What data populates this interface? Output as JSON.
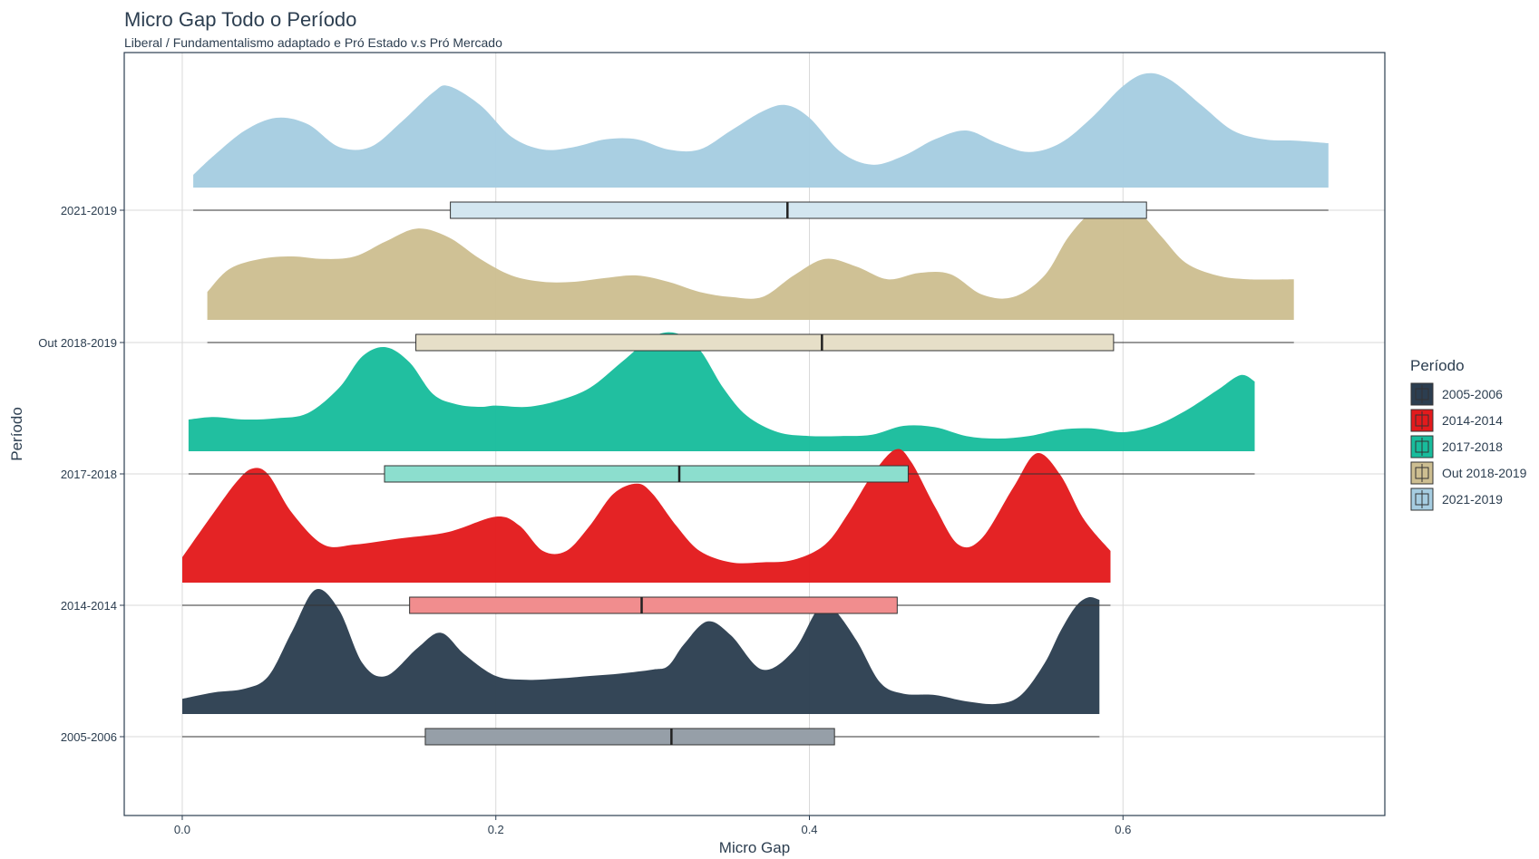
{
  "chart_data": {
    "type": "ridgeline",
    "title": "Micro Gap Todo o Período",
    "subtitle": "Liberal / Fundamentalismo adaptado e Pró Estado v.s Pró Mercado",
    "xlabel": "Micro Gap",
    "ylabel": "Período",
    "xlim": [
      -0.037,
      0.767
    ],
    "x_ticks": [
      0.0,
      0.2,
      0.4,
      0.6
    ],
    "x_tick_labels": [
      "0.0",
      "0.2",
      "0.4",
      "0.6"
    ],
    "grid": true,
    "legend": {
      "title": "Período",
      "placement": "right",
      "entries": [
        "2005-2006",
        "2014-2014",
        "2017-2018",
        "Out 2018-2019",
        "2021-2019"
      ]
    },
    "series": [
      {
        "name": "2005-2006",
        "color": "#2c3e50",
        "box": {
          "min": 0.0,
          "q1": 0.155,
          "median": 0.312,
          "q3": 0.416,
          "max": 0.585
        },
        "density": {
          "x": [
            0.0,
            0.02,
            0.04,
            0.055,
            0.07,
            0.085,
            0.1,
            0.115,
            0.13,
            0.15,
            0.165,
            0.18,
            0.2,
            0.22,
            0.24,
            0.26,
            0.28,
            0.3,
            0.31,
            0.32,
            0.335,
            0.35,
            0.37,
            0.39,
            0.405,
            0.415,
            0.43,
            0.445,
            0.46,
            0.48,
            0.5,
            0.52,
            0.535,
            0.55,
            0.56,
            0.57,
            0.578,
            0.585
          ],
          "y": [
            0.12,
            0.17,
            0.2,
            0.3,
            0.65,
            0.98,
            0.82,
            0.4,
            0.3,
            0.52,
            0.64,
            0.47,
            0.3,
            0.27,
            0.28,
            0.3,
            0.32,
            0.35,
            0.38,
            0.55,
            0.73,
            0.62,
            0.35,
            0.5,
            0.82,
            0.83,
            0.58,
            0.25,
            0.16,
            0.15,
            0.1,
            0.08,
            0.15,
            0.4,
            0.65,
            0.85,
            0.92,
            0.9
          ]
        }
      },
      {
        "name": "2014-2014",
        "color": "#e31a1c",
        "box": {
          "min": 0.0,
          "q1": 0.145,
          "median": 0.293,
          "q3": 0.456,
          "max": 0.592
        },
        "density": {
          "x": [
            0.0,
            0.02,
            0.035,
            0.045,
            0.055,
            0.07,
            0.09,
            0.11,
            0.14,
            0.17,
            0.2,
            0.215,
            0.23,
            0.245,
            0.26,
            0.275,
            0.29,
            0.3,
            0.315,
            0.33,
            0.35,
            0.37,
            0.39,
            0.41,
            0.425,
            0.44,
            0.455,
            0.465,
            0.48,
            0.495,
            0.51,
            0.53,
            0.545,
            0.56,
            0.575,
            0.592
          ],
          "y": [
            0.2,
            0.55,
            0.8,
            0.9,
            0.85,
            0.55,
            0.3,
            0.3,
            0.35,
            0.4,
            0.52,
            0.45,
            0.25,
            0.25,
            0.45,
            0.7,
            0.78,
            0.7,
            0.45,
            0.25,
            0.16,
            0.16,
            0.18,
            0.3,
            0.55,
            0.85,
            1.05,
            0.95,
            0.6,
            0.3,
            0.35,
            0.75,
            1.02,
            0.85,
            0.5,
            0.25
          ]
        }
      },
      {
        "name": "2017-2018",
        "color": "#18bc9c",
        "box": {
          "min": 0.004,
          "q1": 0.129,
          "median": 0.317,
          "q3": 0.463,
          "max": 0.684
        },
        "density": {
          "x": [
            0.004,
            0.02,
            0.04,
            0.06,
            0.08,
            0.1,
            0.115,
            0.13,
            0.145,
            0.16,
            0.175,
            0.19,
            0.2,
            0.22,
            0.24,
            0.26,
            0.28,
            0.3,
            0.315,
            0.33,
            0.345,
            0.36,
            0.38,
            0.4,
            0.42,
            0.44,
            0.46,
            0.48,
            0.5,
            0.52,
            0.54,
            0.56,
            0.58,
            0.6,
            0.62,
            0.64,
            0.66,
            0.675,
            0.684
          ],
          "y": [
            0.25,
            0.27,
            0.25,
            0.26,
            0.3,
            0.5,
            0.75,
            0.82,
            0.7,
            0.45,
            0.37,
            0.35,
            0.36,
            0.35,
            0.4,
            0.5,
            0.7,
            0.9,
            0.93,
            0.8,
            0.5,
            0.28,
            0.15,
            0.12,
            0.12,
            0.13,
            0.2,
            0.19,
            0.12,
            0.1,
            0.12,
            0.17,
            0.18,
            0.15,
            0.2,
            0.32,
            0.48,
            0.6,
            0.55
          ]
        }
      },
      {
        "name": "Out 2018-2019",
        "color": "#cdbe91",
        "box": {
          "min": 0.016,
          "q1": 0.149,
          "median": 0.408,
          "q3": 0.594,
          "max": 0.709
        },
        "density": {
          "x": [
            0.016,
            0.03,
            0.05,
            0.07,
            0.09,
            0.11,
            0.13,
            0.15,
            0.17,
            0.19,
            0.21,
            0.23,
            0.25,
            0.27,
            0.29,
            0.31,
            0.33,
            0.35,
            0.37,
            0.39,
            0.41,
            0.43,
            0.45,
            0.47,
            0.49,
            0.51,
            0.53,
            0.55,
            0.565,
            0.58,
            0.595,
            0.61,
            0.625,
            0.64,
            0.66,
            0.68,
            0.709
          ],
          "y": [
            0.22,
            0.4,
            0.48,
            0.5,
            0.48,
            0.5,
            0.62,
            0.72,
            0.65,
            0.48,
            0.35,
            0.3,
            0.3,
            0.33,
            0.35,
            0.3,
            0.22,
            0.18,
            0.18,
            0.35,
            0.48,
            0.42,
            0.32,
            0.37,
            0.36,
            0.2,
            0.18,
            0.35,
            0.65,
            0.85,
            0.92,
            0.85,
            0.65,
            0.45,
            0.35,
            0.32,
            0.32
          ]
        }
      },
      {
        "name": "2021-2019",
        "color": "#a6cde1",
        "box": {
          "min": 0.007,
          "q1": 0.171,
          "median": 0.386,
          "q3": 0.615,
          "max": 0.731
        },
        "density": {
          "x": [
            0.007,
            0.02,
            0.04,
            0.06,
            0.08,
            0.1,
            0.12,
            0.14,
            0.16,
            0.17,
            0.19,
            0.21,
            0.23,
            0.25,
            0.27,
            0.29,
            0.31,
            0.33,
            0.35,
            0.37,
            0.385,
            0.4,
            0.42,
            0.44,
            0.46,
            0.48,
            0.5,
            0.52,
            0.54,
            0.56,
            0.58,
            0.6,
            0.615,
            0.63,
            0.65,
            0.67,
            0.69,
            0.71,
            0.731
          ],
          "y": [
            0.1,
            0.25,
            0.45,
            0.55,
            0.5,
            0.32,
            0.32,
            0.52,
            0.75,
            0.8,
            0.65,
            0.4,
            0.3,
            0.32,
            0.38,
            0.38,
            0.3,
            0.3,
            0.45,
            0.6,
            0.65,
            0.55,
            0.28,
            0.18,
            0.25,
            0.38,
            0.45,
            0.35,
            0.28,
            0.35,
            0.55,
            0.8,
            0.9,
            0.85,
            0.65,
            0.45,
            0.38,
            0.37,
            0.35
          ]
        }
      }
    ]
  }
}
